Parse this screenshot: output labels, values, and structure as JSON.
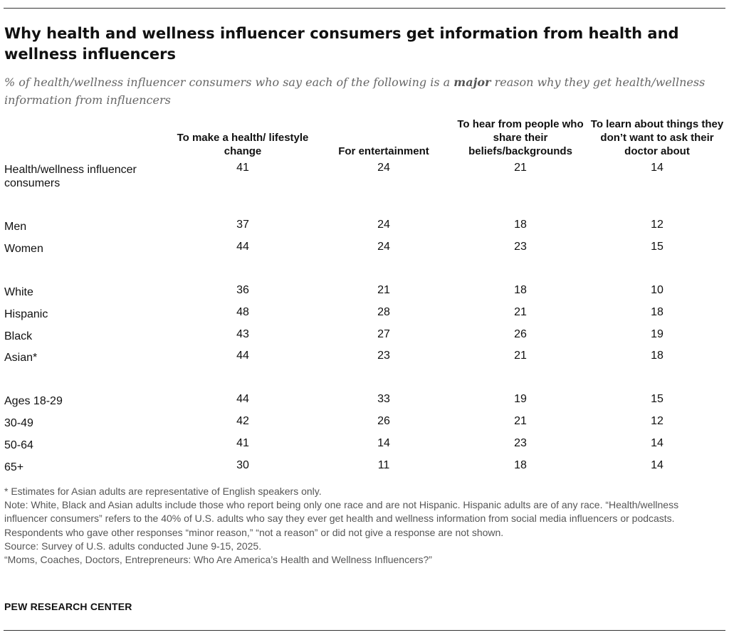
{
  "title": "Why health and wellness influencer consumers get information from health and wellness influencers",
  "subtitle_pre": "% of health/wellness influencer consumers who say each of the following is a ",
  "subtitle_bold": "major",
  "subtitle_post": " reason why they get health/wellness information from influencers",
  "chart_data": {
    "type": "table",
    "columns": [
      "To make a health/ lifestyle change",
      "For entertainment",
      "To hear from people who share their beliefs/backgrounds",
      "To learn about things they don’t want to ask their doctor about"
    ],
    "rows": [
      {
        "label": "Health/wellness influencer consumers",
        "values": [
          41,
          24,
          21,
          14
        ]
      },
      {
        "label": "Men",
        "values": [
          37,
          24,
          18,
          12
        ]
      },
      {
        "label": "Women",
        "values": [
          44,
          24,
          23,
          15
        ]
      },
      {
        "label": "White",
        "values": [
          36,
          21,
          18,
          10
        ]
      },
      {
        "label": "Hispanic",
        "values": [
          48,
          28,
          21,
          18
        ]
      },
      {
        "label": "Black",
        "values": [
          43,
          27,
          26,
          19
        ]
      },
      {
        "label": "Asian*",
        "values": [
          44,
          23,
          21,
          18
        ]
      },
      {
        "label": "Ages 18-29",
        "values": [
          44,
          33,
          19,
          15
        ]
      },
      {
        "label": "30-49",
        "values": [
          42,
          26,
          21,
          12
        ]
      },
      {
        "label": "50-64",
        "values": [
          41,
          14,
          23,
          14
        ]
      },
      {
        "label": "65+",
        "values": [
          30,
          11,
          18,
          14
        ]
      }
    ]
  },
  "notes": [
    "* Estimates for Asian adults are representative of English speakers only.",
    "Note: White, Black and Asian adults include those who report being only one race and are not Hispanic. Hispanic adults are of any race. “Health/wellness influencer consumers” refers to the 40% of U.S. adults who say they ever get health and wellness information from social media influencers or podcasts. Respondents who gave other responses “minor reason,” “not a reason” or did not give a response are not shown.",
    "Source: Survey of U.S. adults conducted June 9-15, 2025.",
    "“Moms, Coaches, Doctors, Entrepreneurs: Who Are America’s Health and Wellness Influencers?”"
  ],
  "logo": "PEW RESEARCH CENTER"
}
